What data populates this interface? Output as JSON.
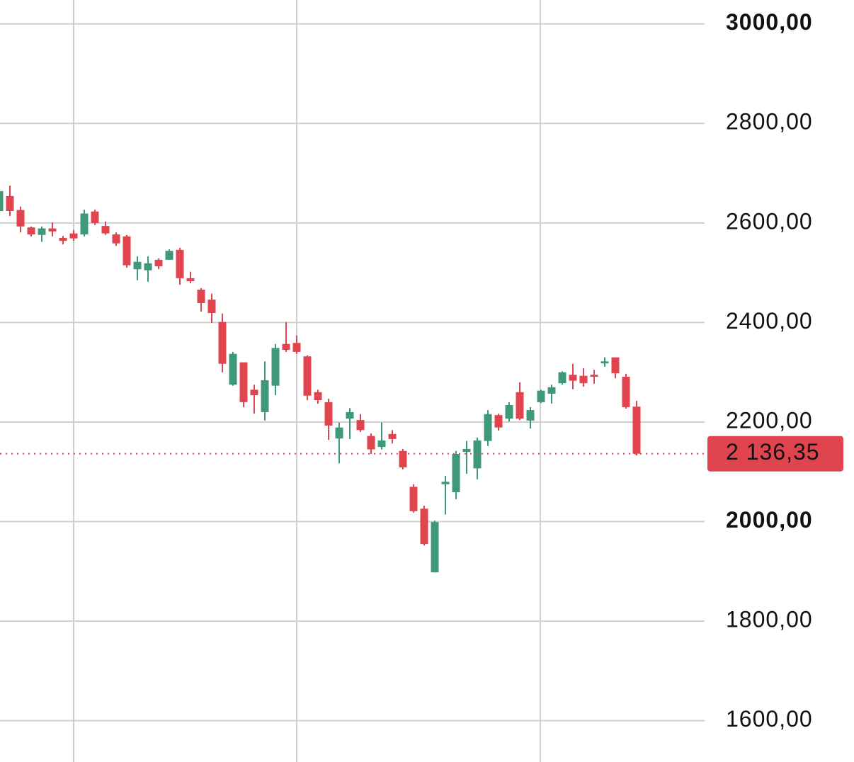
{
  "chart_data": {
    "type": "candlestick",
    "up_color": "#3f9878",
    "down_color": "#e0454f",
    "grid": true,
    "ylim": [
      1517,
      3048
    ],
    "yticks": [
      {
        "value": 1600,
        "label": "1600,00"
      },
      {
        "value": 1800,
        "label": "1800,00"
      },
      {
        "value": 2000,
        "label": "2000,00",
        "bold": true
      },
      {
        "value": 2200,
        "label": "2200,00"
      },
      {
        "value": 2400,
        "label": "2400,00"
      },
      {
        "value": 2600,
        "label": "2600,00"
      },
      {
        "value": 2800,
        "label": "2800,00"
      },
      {
        "value": 3000,
        "label": "3000,00",
        "bold": true
      }
    ],
    "open": [
      2624,
      2654,
      2626,
      2591,
      2576,
      2589,
      2570,
      2579,
      2577,
      2623,
      2594,
      2577,
      2573,
      2507,
      2505,
      2526,
      2526,
      2546,
      2489,
      2466,
      2446,
      2401,
      2275,
      2320,
      2265,
      2220,
      2273,
      2357,
      2359,
      2332,
      2260,
      2240,
      2167,
      2207,
      2204,
      2172,
      2150,
      2176,
      2142,
      2070,
      2026,
      1898,
      2075,
      2059,
      2140,
      2107,
      2162,
      2214,
      2207,
      2260,
      2203,
      2240,
      2257,
      2278,
      2295,
      2293,
      2295,
      2318,
      2330,
      2291,
      2231
    ],
    "high": [
      2670,
      2675,
      2633,
      2593,
      2593,
      2601,
      2574,
      2586,
      2627,
      2627,
      2603,
      2581,
      2576,
      2533,
      2533,
      2529,
      2547,
      2550,
      2502,
      2469,
      2458,
      2418,
      2341,
      2320,
      2275,
      2322,
      2357,
      2401,
      2374,
      2334,
      2265,
      2247,
      2199,
      2228,
      2216,
      2177,
      2199,
      2184,
      2146,
      2075,
      2032,
      2002,
      2092,
      2142,
      2162,
      2169,
      2224,
      2217,
      2240,
      2280,
      2230,
      2265,
      2275,
      2302,
      2317,
      2308,
      2305,
      2330,
      2330,
      2297,
      2243
    ],
    "low": [
      2615,
      2614,
      2581,
      2573,
      2562,
      2573,
      2557,
      2564,
      2573,
      2596,
      2576,
      2554,
      2510,
      2485,
      2482,
      2507,
      2526,
      2476,
      2479,
      2422,
      2399,
      2300,
      2273,
      2230,
      2217,
      2203,
      2254,
      2341,
      2337,
      2244,
      2237,
      2164,
      2117,
      2166,
      2180,
      2136,
      2145,
      2157,
      2105,
      2018,
      1952,
      1898,
      2014,
      2045,
      2096,
      2085,
      2152,
      2183,
      2201,
      2204,
      2187,
      2238,
      2237,
      2275,
      2266,
      2271,
      2277,
      2311,
      2288,
      2227,
      2133
    ],
    "close": [
      2664,
      2624,
      2593,
      2577,
      2589,
      2583,
      2564,
      2569,
      2619,
      2600,
      2579,
      2559,
      2515,
      2522,
      2519,
      2513,
      2544,
      2489,
      2483,
      2439,
      2419,
      2317,
      2337,
      2240,
      2254,
      2284,
      2349,
      2345,
      2341,
      2253,
      2244,
      2193,
      2189,
      2220,
      2184,
      2145,
      2163,
      2166,
      2109,
      2021,
      1955,
      1999,
      2080,
      2136,
      2146,
      2163,
      2216,
      2189,
      2234,
      2207,
      2224,
      2263,
      2270,
      2300,
      2283,
      2278,
      2291,
      2322,
      2298,
      2230,
      2136.35
    ],
    "last_price": {
      "value": 2136.35,
      "label": "2 136,35"
    }
  }
}
